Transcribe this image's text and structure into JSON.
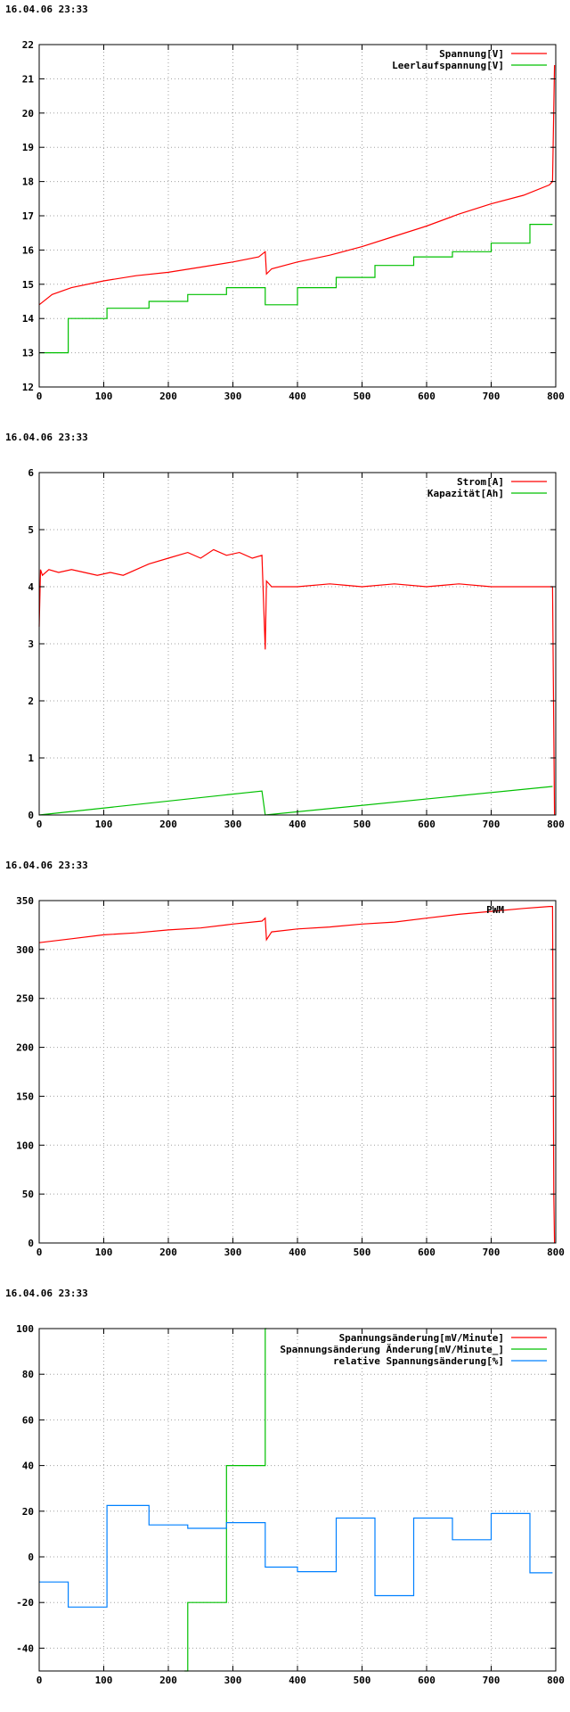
{
  "charts": [
    {
      "timestamp": "16.04.06 23:33"
    },
    {
      "timestamp": "16.04.06 23:33"
    },
    {
      "timestamp": "16.04.06 23:33"
    },
    {
      "timestamp": "16.04.06 23:33"
    }
  ],
  "chart_data": [
    {
      "type": "line",
      "xlim": [
        0,
        800
      ],
      "ylim": [
        12,
        22
      ],
      "xticks": [
        0,
        100,
        200,
        300,
        400,
        500,
        600,
        700,
        800
      ],
      "yticks": [
        12,
        13,
        14,
        15,
        16,
        17,
        18,
        19,
        20,
        21,
        22
      ],
      "grid": true,
      "legend_position": "top-right",
      "series": [
        {
          "name": "Spannung[V]",
          "color": "#ff0000",
          "x": [
            0,
            20,
            50,
            100,
            150,
            200,
            250,
            300,
            340,
            350,
            352,
            360,
            400,
            450,
            500,
            550,
            600,
            650,
            700,
            750,
            790,
            795,
            798
          ],
          "y": [
            14.4,
            14.7,
            14.9,
            15.1,
            15.25,
            15.35,
            15.5,
            15.65,
            15.8,
            15.95,
            15.3,
            15.45,
            15.65,
            15.85,
            16.1,
            16.4,
            16.7,
            17.05,
            17.35,
            17.6,
            17.9,
            18.0,
            21.4
          ]
        },
        {
          "name": "Leerlaufspannung[V]",
          "color": "#00c000",
          "step": true,
          "x": [
            0,
            45,
            105,
            170,
            230,
            290,
            350,
            400,
            460,
            520,
            580,
            640,
            700,
            760,
            795
          ],
          "y": [
            13.0,
            14.0,
            14.3,
            14.5,
            14.7,
            14.9,
            14.4,
            14.9,
            15.2,
            15.55,
            15.8,
            15.95,
            16.2,
            16.75,
            16.75
          ]
        }
      ]
    },
    {
      "type": "line",
      "xlim": [
        0,
        800
      ],
      "ylim": [
        0,
        6
      ],
      "xticks": [
        0,
        100,
        200,
        300,
        400,
        500,
        600,
        700,
        800
      ],
      "yticks": [
        0,
        1,
        2,
        3,
        4,
        5,
        6
      ],
      "grid": true,
      "legend_position": "top-right",
      "series": [
        {
          "name": "Strom[A]",
          "color": "#ff0000",
          "x": [
            0,
            2,
            5,
            15,
            30,
            50,
            70,
            90,
            110,
            130,
            150,
            170,
            200,
            230,
            250,
            270,
            290,
            310,
            330,
            345,
            350,
            352,
            360,
            400,
            450,
            500,
            550,
            600,
            650,
            700,
            750,
            790,
            795,
            798
          ],
          "y": [
            3.3,
            4.3,
            4.2,
            4.3,
            4.25,
            4.3,
            4.25,
            4.2,
            4.25,
            4.2,
            4.3,
            4.4,
            4.5,
            4.6,
            4.5,
            4.65,
            4.55,
            4.6,
            4.5,
            4.55,
            2.9,
            4.1,
            4.0,
            4.0,
            4.05,
            4.0,
            4.05,
            4.0,
            4.05,
            4.0,
            4.0,
            4.0,
            4.0,
            0
          ]
        },
        {
          "name": "Kapazität[Ah]",
          "color": "#00c000",
          "x": [
            0,
            345,
            350,
            795
          ],
          "y": [
            0,
            0.42,
            0,
            0.5
          ]
        }
      ]
    },
    {
      "type": "line",
      "xlim": [
        0,
        800
      ],
      "ylim": [
        0,
        350
      ],
      "xticks": [
        0,
        100,
        200,
        300,
        400,
        500,
        600,
        700,
        800
      ],
      "yticks": [
        0,
        50,
        100,
        150,
        200,
        250,
        300,
        350
      ],
      "grid": true,
      "legend_position": "top-right",
      "series": [
        {
          "name": "PWM",
          "color": "#ff0000",
          "x": [
            0,
            50,
            100,
            150,
            200,
            250,
            300,
            345,
            350,
            352,
            360,
            400,
            450,
            500,
            550,
            600,
            650,
            700,
            750,
            790,
            795,
            797,
            798
          ],
          "y": [
            307,
            311,
            315,
            317,
            320,
            322,
            326,
            329,
            332,
            310,
            318,
            321,
            323,
            326,
            328,
            332,
            336,
            339,
            342,
            344,
            344,
            50,
            0
          ]
        }
      ]
    },
    {
      "type": "line",
      "xlim": [
        0,
        800
      ],
      "ylim": [
        -50,
        100
      ],
      "xticks": [
        0,
        100,
        200,
        300,
        400,
        500,
        600,
        700,
        800
      ],
      "yticks": [
        -40,
        -20,
        0,
        20,
        40,
        60,
        80,
        100
      ],
      "grid": true,
      "legend_position": "top-right",
      "series": [
        {
          "name": "Spannungsänderung[mV/Minute]",
          "color": "#ff0000",
          "x": [],
          "y": []
        },
        {
          "name": "Spannungsänderung Änderung[mV/Minute_]",
          "color": "#00c000",
          "step": true,
          "x": [
            225,
            230,
            290,
            350,
            352
          ],
          "y": [
            -50,
            -20,
            40,
            100,
            100
          ]
        },
        {
          "name": "relative Spannungsänderung[%]",
          "color": "#0080ff",
          "step": true,
          "x": [
            0,
            45,
            105,
            170,
            230,
            290,
            350,
            400,
            460,
            520,
            580,
            640,
            700,
            760,
            795
          ],
          "y": [
            -11,
            -22,
            22.5,
            14,
            12.5,
            15,
            -4.5,
            -6.5,
            17,
            -17,
            17,
            7.5,
            19,
            -7,
            -7
          ]
        }
      ]
    }
  ]
}
